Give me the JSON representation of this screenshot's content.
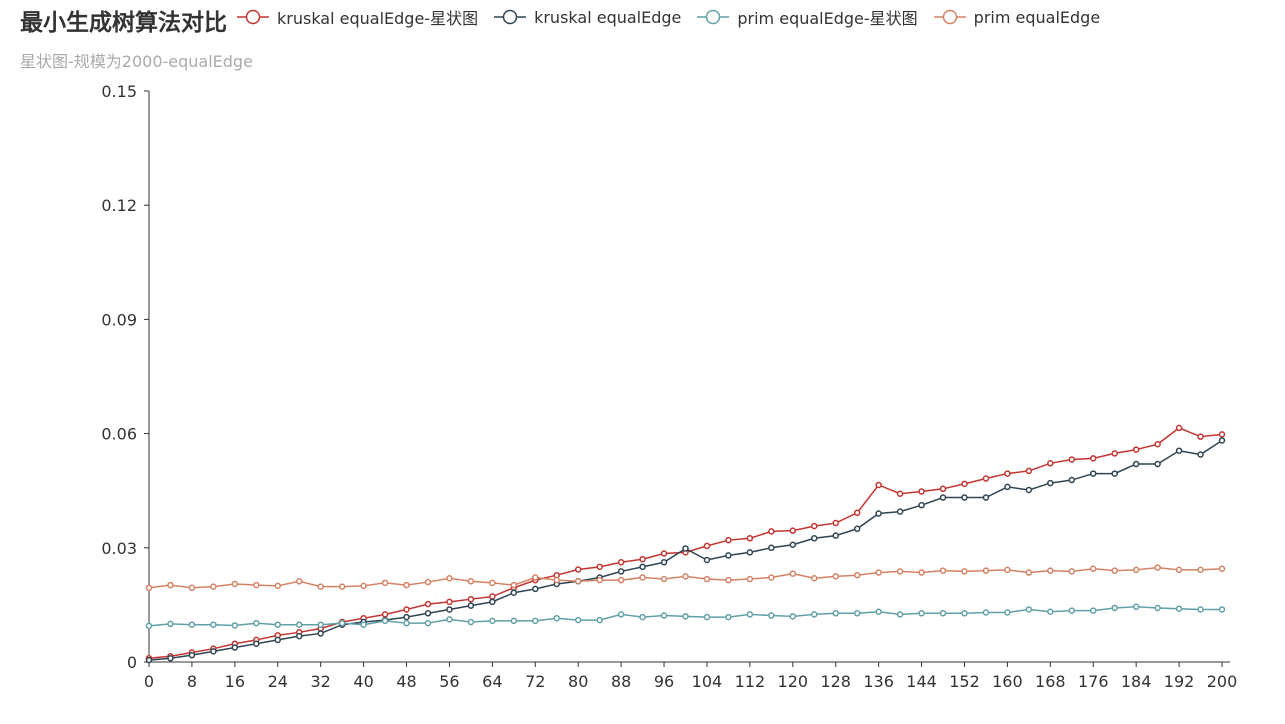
{
  "title": "最小生成树算法对比",
  "subtitle": "星状图-规模为2000-equalEdge",
  "chart_data": {
    "type": "line",
    "x": [
      0,
      4,
      8,
      12,
      16,
      20,
      24,
      28,
      32,
      36,
      40,
      44,
      48,
      52,
      56,
      60,
      64,
      68,
      72,
      76,
      80,
      84,
      88,
      92,
      96,
      100,
      104,
      108,
      112,
      116,
      120,
      124,
      128,
      132,
      136,
      140,
      144,
      148,
      152,
      156,
      160,
      164,
      168,
      172,
      176,
      180,
      184,
      188,
      192,
      196,
      200
    ],
    "x_ticks": [
      "0",
      "8",
      "16",
      "24",
      "32",
      "40",
      "48",
      "56",
      "64",
      "72",
      "80",
      "88",
      "96",
      "104",
      "112",
      "120",
      "128",
      "136",
      "144",
      "152",
      "160",
      "168",
      "176",
      "184",
      "192",
      "200"
    ],
    "y_ticks": [
      "0",
      "0.03",
      "0.06",
      "0.09",
      "0.12",
      "0.15"
    ],
    "ylim": [
      0,
      0.15
    ],
    "xlim": [
      0,
      200
    ],
    "series": [
      {
        "name": "kruskal equalEdge-星状图",
        "color": "#c23531",
        "values": [
          0.001,
          0.0015,
          0.0025,
          0.0035,
          0.0048,
          0.0058,
          0.007,
          0.0078,
          0.0088,
          0.0105,
          0.0115,
          0.0125,
          0.0138,
          0.0152,
          0.0158,
          0.0165,
          0.0172,
          0.0195,
          0.0215,
          0.0228,
          0.0243,
          0.025,
          0.0262,
          0.027,
          0.0285,
          0.0288,
          0.0305,
          0.032,
          0.0325,
          0.0343,
          0.0345,
          0.0357,
          0.0365,
          0.0392,
          0.0465,
          0.0442,
          0.0448,
          0.0455,
          0.0468,
          0.0482,
          0.0495,
          0.0502,
          0.0522,
          0.0532,
          0.0535,
          0.0548,
          0.0558,
          0.0572,
          0.0615,
          0.0592,
          0.0598
        ]
      },
      {
        "name": "kruskal equalEdge",
        "color": "#2f4554",
        "values": [
          0.0005,
          0.001,
          0.0018,
          0.0028,
          0.0038,
          0.0048,
          0.0058,
          0.0068,
          0.0075,
          0.0098,
          0.0105,
          0.011,
          0.0118,
          0.0128,
          0.0138,
          0.0148,
          0.0158,
          0.0182,
          0.0192,
          0.0205,
          0.0212,
          0.0222,
          0.0238,
          0.025,
          0.0262,
          0.0298,
          0.0268,
          0.028,
          0.0288,
          0.03,
          0.0308,
          0.0325,
          0.0332,
          0.035,
          0.039,
          0.0395,
          0.0412,
          0.0432,
          0.0432,
          0.0432,
          0.046,
          0.0452,
          0.047,
          0.0478,
          0.0495,
          0.0495,
          0.052,
          0.052,
          0.0555,
          0.0545,
          0.0582
        ]
      },
      {
        "name": "prim equalEdge-星状图",
        "color": "#61a0a8",
        "values": [
          0.0095,
          0.01,
          0.0098,
          0.0098,
          0.0096,
          0.0102,
          0.0098,
          0.0098,
          0.0098,
          0.0102,
          0.0098,
          0.0108,
          0.0102,
          0.0102,
          0.0112,
          0.0105,
          0.0108,
          0.0108,
          0.0108,
          0.0115,
          0.011,
          0.011,
          0.0125,
          0.0118,
          0.0122,
          0.012,
          0.0118,
          0.0118,
          0.0125,
          0.0122,
          0.012,
          0.0125,
          0.0128,
          0.0128,
          0.0132,
          0.0125,
          0.0128,
          0.0128,
          0.0128,
          0.013,
          0.013,
          0.0138,
          0.0132,
          0.0135,
          0.0135,
          0.0142,
          0.0145,
          0.0142,
          0.014,
          0.0138,
          0.0138
        ]
      },
      {
        "name": "prim equalEdge",
        "color": "#d48265",
        "values": [
          0.0195,
          0.0202,
          0.0195,
          0.0198,
          0.0205,
          0.0202,
          0.02,
          0.0212,
          0.0198,
          0.0198,
          0.02,
          0.0208,
          0.0202,
          0.021,
          0.022,
          0.0212,
          0.0208,
          0.0202,
          0.0222,
          0.0215,
          0.0212,
          0.0215,
          0.0215,
          0.0222,
          0.0218,
          0.0225,
          0.0218,
          0.0215,
          0.0218,
          0.0222,
          0.0232,
          0.022,
          0.0225,
          0.0228,
          0.0235,
          0.0238,
          0.0235,
          0.024,
          0.0238,
          0.024,
          0.0242,
          0.0235,
          0.024,
          0.0238,
          0.0245,
          0.024,
          0.0242,
          0.0248,
          0.0242,
          0.0242,
          0.0245
        ]
      }
    ]
  }
}
